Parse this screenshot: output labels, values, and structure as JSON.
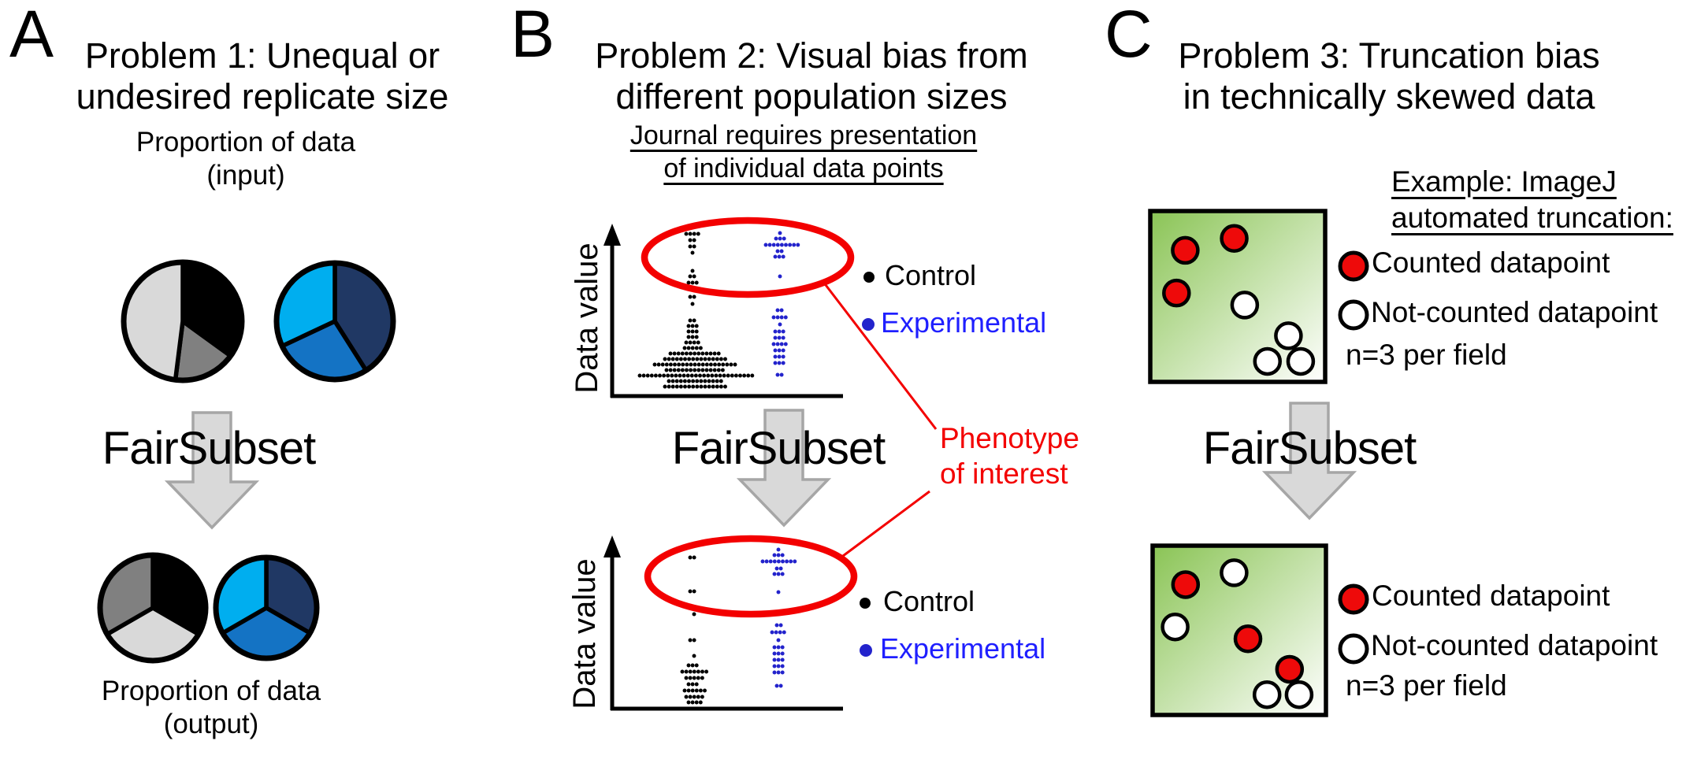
{
  "colors": {
    "black": "#000000",
    "light_gray": "#d9d9d9",
    "mid_gray": "#808080",
    "cyan": "#00aeef",
    "medium_blue": "#1473c4",
    "navy": "#203864",
    "arrow_fill": "#d9d9d9",
    "arrow_stroke": "#a6a6a6",
    "red": "#f30000",
    "datapoint_red": "#ee0a0a",
    "experimental_text": "#1f1fff",
    "experimental_dot": "#2323cc",
    "field_green": "#8ac455"
  },
  "panel_a": {
    "label": "A",
    "title_line1": "Problem 1: Unequal or",
    "title_line2": "undesired replicate size",
    "input_caption_line1": "Proportion of data",
    "input_caption_line2": "(input)",
    "fairsubset_label": "FairSubset",
    "output_caption_line1": "Proportion of data",
    "output_caption_line2": "(output)"
  },
  "panel_b": {
    "label": "B",
    "title_line1": "Problem 2: Visual bias from",
    "title_line2": "different population sizes",
    "subtitle_line1": "Journal requires presentation",
    "subtitle_line2": "of individual data points",
    "y_axis_label": "Data value",
    "legend_control": "Control",
    "legend_experimental": "Experimental",
    "fairsubset_label": "FairSubset",
    "annotation_line1": "Phenotype",
    "annotation_line2": "of interest"
  },
  "panel_c": {
    "label": "C",
    "title_line1": "Problem 3: Truncation bias",
    "title_line2": "in technically skewed data",
    "subtitle_line1": "Example: ImageJ",
    "subtitle_line2": "automated truncation:",
    "legend_counted": "Counted datapoint",
    "legend_not_counted": "Not-counted datapoint",
    "legend_n": "n=3 per field",
    "fairsubset_label": "FairSubset"
  },
  "chart_data": [
    {
      "id": "pie-input-left",
      "type": "pie",
      "panel": "A",
      "title": "Proportion of data (input) - grayscale replicate",
      "slices": [
        {
          "label": "subset-black",
          "value": 35,
          "color": "#000000"
        },
        {
          "label": "subset-gray",
          "value": 17,
          "color": "#808080"
        },
        {
          "label": "subset-lightgray",
          "value": 48,
          "color": "#d9d9d9"
        }
      ]
    },
    {
      "id": "pie-input-right",
      "type": "pie",
      "panel": "A",
      "title": "Proportion of data (input) - blue replicate",
      "slices": [
        {
          "label": "subset-navy",
          "value": 41,
          "color": "#203864"
        },
        {
          "label": "subset-blue",
          "value": 27,
          "color": "#1473c4"
        },
        {
          "label": "subset-cyan",
          "value": 32,
          "color": "#00aeef"
        }
      ]
    },
    {
      "id": "pie-output-left",
      "type": "pie",
      "panel": "A",
      "title": "Proportion of data (output) - grayscale replicate",
      "slices": [
        {
          "label": "subset-black",
          "value": 33.34,
          "color": "#000000"
        },
        {
          "label": "subset-lightgray",
          "value": 33.33,
          "color": "#d9d9d9"
        },
        {
          "label": "subset-gray",
          "value": 33.33,
          "color": "#808080"
        }
      ]
    },
    {
      "id": "pie-output-right",
      "type": "pie",
      "panel": "A",
      "title": "Proportion of data (output) - blue replicate",
      "slices": [
        {
          "label": "subset-navy",
          "value": 33.34,
          "color": "#203864"
        },
        {
          "label": "subset-blue",
          "value": 33.33,
          "color": "#1473c4"
        },
        {
          "label": "subset-cyan",
          "value": 33.33,
          "color": "#00aeef"
        }
      ]
    },
    {
      "id": "dotplot-input",
      "type": "scatter",
      "panel": "B",
      "ylabel": "Data value",
      "legend": [
        "Control",
        "Experimental"
      ],
      "annotation": "Phenotype of interest",
      "rows_format": "[y_px, x_start_px, dot_count] with 5.1px dot spacing",
      "series": [
        {
          "name": "Control",
          "color": "#000000",
          "rows": [
            [
              297,
              871,
              4
            ],
            [
              305,
              876,
              2
            ],
            [
              313,
              876,
              2
            ],
            [
              321,
              879,
              1
            ],
            [
              344,
              879,
              1
            ],
            [
              351,
              876,
              2
            ],
            [
              359,
              874,
              3
            ],
            [
              367,
              879,
              1
            ],
            [
              377,
              876,
              2
            ],
            [
              386,
              879,
              1
            ],
            [
              407,
              876,
              2
            ],
            [
              414,
              874,
              3
            ],
            [
              421,
              874,
              3
            ],
            [
              428,
              874,
              3
            ],
            [
              435,
              871,
              4
            ],
            [
              442,
              869,
              5
            ],
            [
              449,
              851,
              13
            ],
            [
              456,
              844,
              16
            ],
            [
              463,
              831,
              21
            ],
            [
              470,
              846,
              15
            ],
            [
              477,
              812,
              29
            ],
            [
              484,
              849,
              14
            ],
            [
              491,
              844,
              16
            ]
          ]
        },
        {
          "name": "Experimental",
          "color": "#2323cc",
          "rows": [
            [
              296,
              990,
              1
            ],
            [
              303,
              985,
              3
            ],
            [
              311,
              972,
              9
            ],
            [
              319,
              987,
              2
            ],
            [
              326,
              984,
              3
            ],
            [
              351,
              990,
              1
            ],
            [
              394,
              987,
              2
            ],
            [
              403,
              982,
              4
            ],
            [
              412,
              990,
              1
            ],
            [
              421,
              984,
              3
            ],
            [
              429,
              984,
              3
            ],
            [
              437,
              982,
              4
            ],
            [
              445,
              984,
              3
            ],
            [
              453,
              984,
              3
            ],
            [
              461,
              984,
              3
            ],
            [
              476,
              987,
              2
            ]
          ]
        }
      ]
    },
    {
      "id": "dotplot-output",
      "type": "scatter",
      "panel": "B",
      "ylabel": "Data value",
      "legend": [
        "Control",
        "Experimental"
      ],
      "annotation": "Phenotype of interest",
      "rows_format": "[y_px, x_start_px, dot_count] with 5.1px dot spacing",
      "series": [
        {
          "name": "Control",
          "color": "#000000",
          "rows": [
            [
              708,
              876,
              2
            ],
            [
              751,
              876,
              2
            ],
            [
              780,
              881,
              1
            ],
            [
              813,
              876,
              2
            ],
            [
              833,
              881,
              1
            ],
            [
              845,
              874,
              3
            ],
            [
              853,
              866,
              7
            ],
            [
              861,
              871,
              5
            ],
            [
              869,
              874,
              3
            ],
            [
              877,
              869,
              6
            ],
            [
              885,
              871,
              5
            ],
            [
              892,
              874,
              4
            ]
          ]
        },
        {
          "name": "Experimental",
          "color": "#2323cc",
          "rows": [
            [
              698,
              988,
              1
            ],
            [
              705,
              983,
              3
            ],
            [
              713,
              968,
              9
            ],
            [
              722,
              986,
              2
            ],
            [
              729,
              983,
              3
            ],
            [
              752,
              988,
              1
            ],
            [
              794,
              986,
              2
            ],
            [
              803,
              980,
              4
            ],
            [
              813,
              988,
              1
            ],
            [
              822,
              983,
              3
            ],
            [
              830,
              983,
              3
            ],
            [
              838,
              983,
              3
            ],
            [
              846,
              983,
              3
            ],
            [
              854,
              983,
              3
            ],
            [
              871,
              986,
              2
            ]
          ]
        }
      ]
    },
    {
      "id": "field-input",
      "type": "field-scatter",
      "panel": "C",
      "n_label": "n=3 per field",
      "points": [
        {
          "x": 0.2,
          "y": 0.23,
          "counted": true
        },
        {
          "x": 0.48,
          "y": 0.16,
          "counted": true
        },
        {
          "x": 0.15,
          "y": 0.48,
          "counted": true
        },
        {
          "x": 0.54,
          "y": 0.55,
          "counted": false
        },
        {
          "x": 0.79,
          "y": 0.73,
          "counted": false
        },
        {
          "x": 0.67,
          "y": 0.88,
          "counted": false
        },
        {
          "x": 0.86,
          "y": 0.88,
          "counted": false
        }
      ]
    },
    {
      "id": "field-output",
      "type": "field-scatter",
      "panel": "C",
      "n_label": "n=3 per field",
      "points": [
        {
          "x": 0.19,
          "y": 0.23,
          "counted": true
        },
        {
          "x": 0.47,
          "y": 0.16,
          "counted": false
        },
        {
          "x": 0.13,
          "y": 0.48,
          "counted": false
        },
        {
          "x": 0.55,
          "y": 0.55,
          "counted": true
        },
        {
          "x": 0.79,
          "y": 0.73,
          "counted": true
        },
        {
          "x": 0.66,
          "y": 0.88,
          "counted": false
        },
        {
          "x": 0.845,
          "y": 0.88,
          "counted": false
        }
      ]
    }
  ]
}
